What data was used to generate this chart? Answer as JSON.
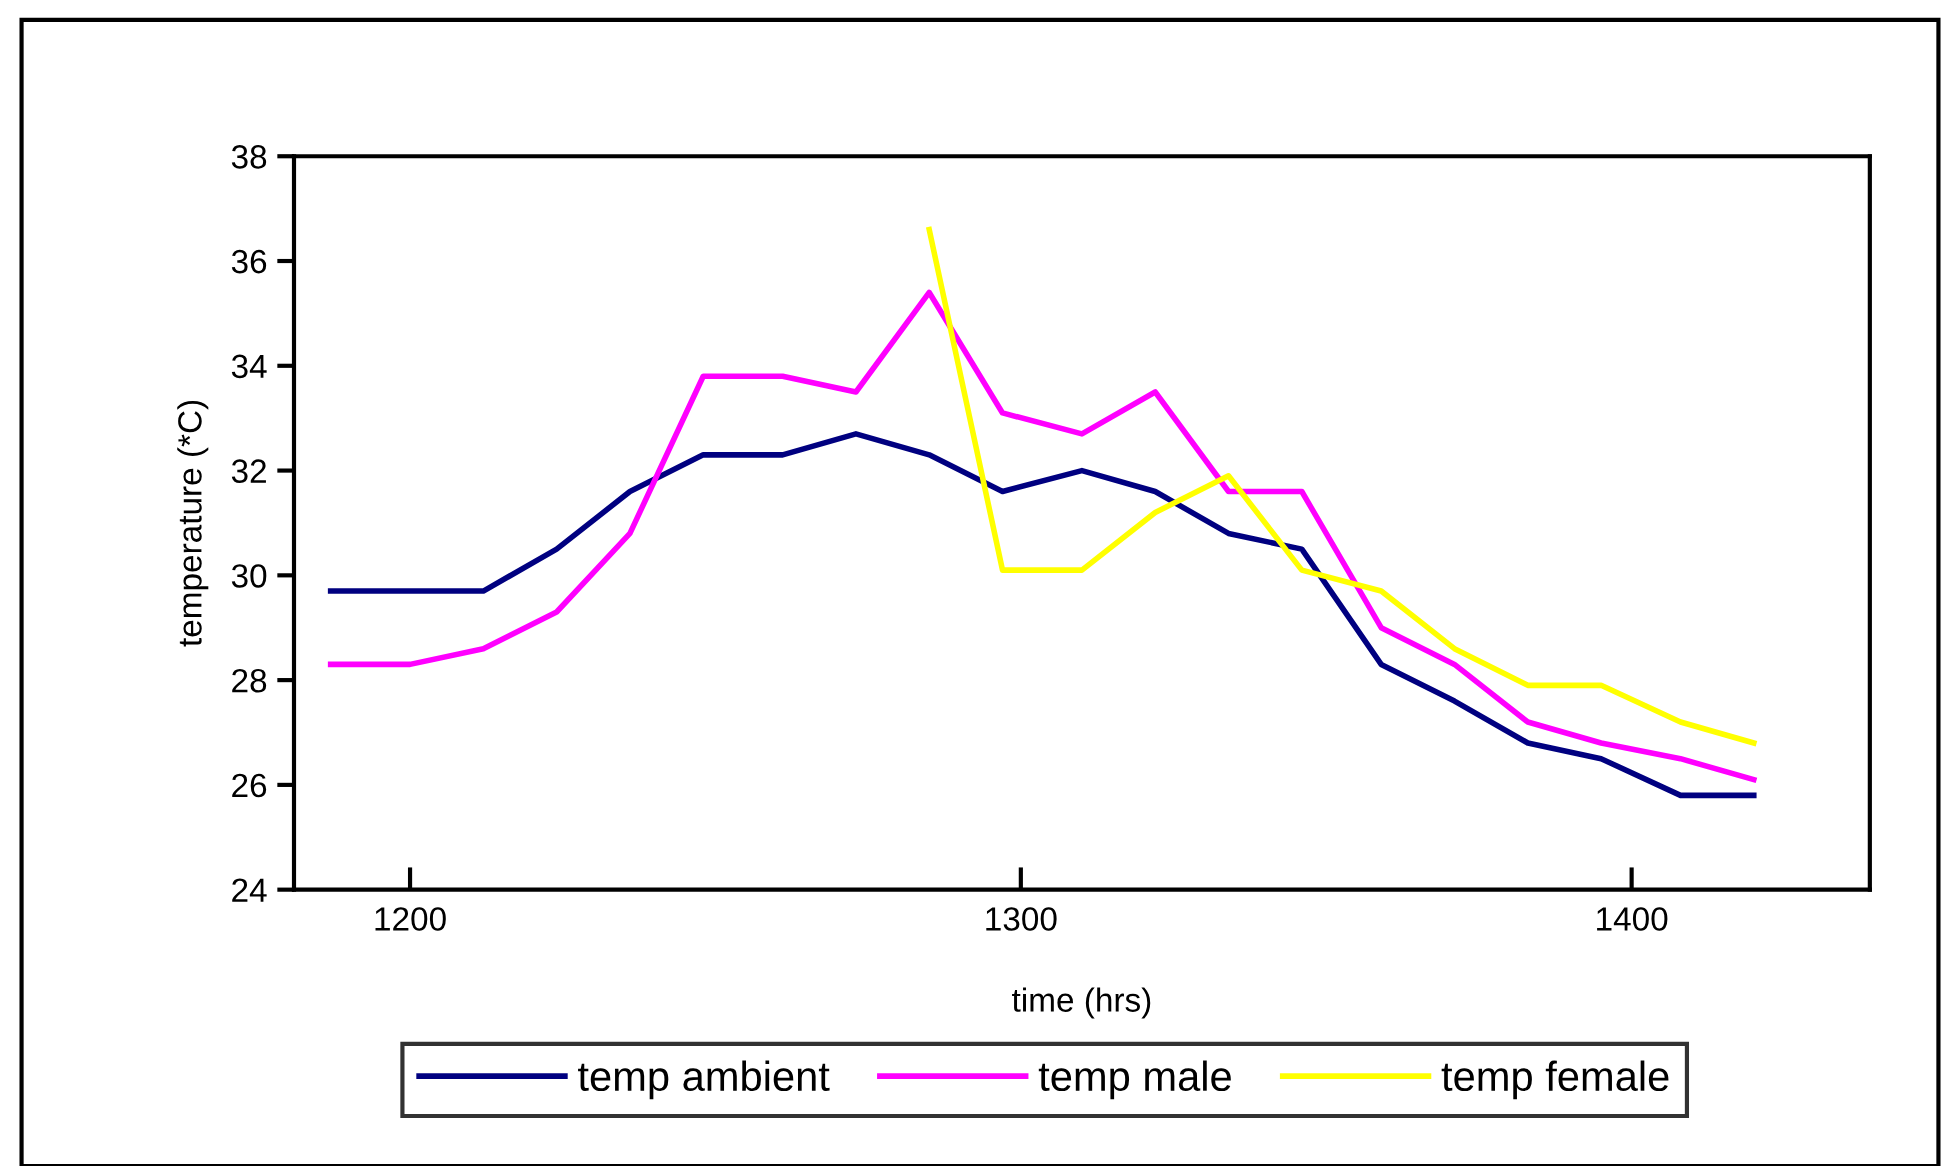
{
  "chart_data": {
    "type": "line",
    "xlabel": "time (hrs)",
    "ylabel": "temperature (*C)",
    "x": [
      1187,
      1200,
      1212,
      1224,
      1236,
      1248,
      1261,
      1273,
      1285,
      1297,
      1310,
      1322,
      1334,
      1346,
      1359,
      1371,
      1383,
      1395,
      1408,
      1420
    ],
    "xlim": [
      1181,
      1439
    ],
    "xticks": [
      1200,
      1300,
      1400
    ],
    "ylim": [
      24,
      38
    ],
    "yticks": [
      24,
      26,
      28,
      30,
      32,
      34,
      36,
      38
    ],
    "grid": false,
    "legend": "bottom",
    "marker": "none",
    "line_style": "solid",
    "series": [
      {
        "name": "temp ambient",
        "color": "#000080",
        "values": [
          29.7,
          29.7,
          29.7,
          30.5,
          31.6,
          32.3,
          32.3,
          32.7,
          32.3,
          31.6,
          32.0,
          31.6,
          30.8,
          30.5,
          28.3,
          27.6,
          26.8,
          26.5,
          25.8,
          25.8
        ]
      },
      {
        "name": "temp male",
        "color": "#ff00ff",
        "values": [
          28.3,
          28.3,
          28.6,
          29.3,
          30.8,
          33.8,
          33.8,
          33.5,
          35.4,
          33.1,
          32.7,
          33.5,
          31.6,
          31.6,
          29.0,
          28.3,
          27.2,
          26.8,
          26.5,
          26.1
        ]
      },
      {
        "name": "temp female",
        "color": "#ffff00",
        "values": [
          null,
          null,
          null,
          null,
          null,
          null,
          null,
          null,
          36.6,
          30.1,
          30.1,
          31.2,
          31.9,
          30.1,
          29.7,
          28.6,
          27.9,
          27.9,
          27.2,
          26.8
        ]
      }
    ]
  }
}
